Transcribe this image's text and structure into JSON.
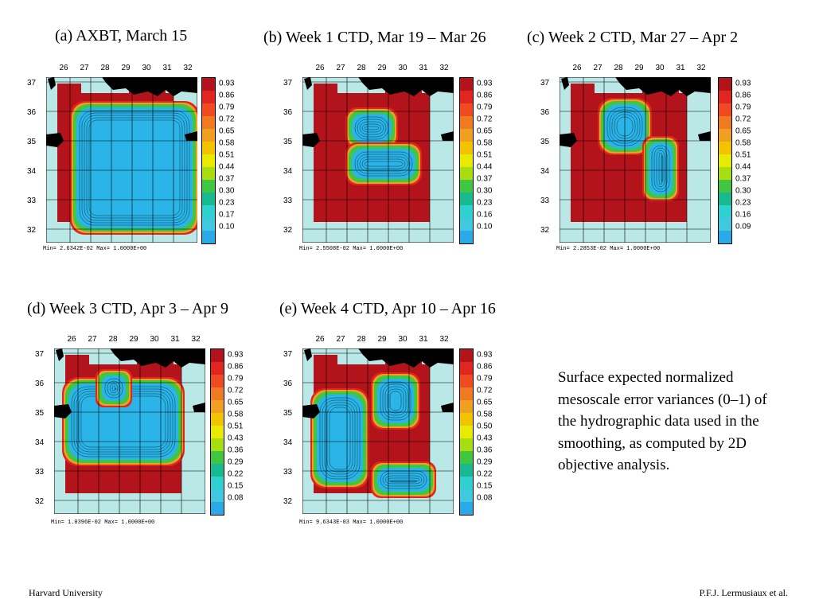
{
  "colors": {
    "high": "#b3131b",
    "low": "#2bb4e8",
    "land": "#000000",
    "water": "#b9e8e6",
    "colorbar": [
      "#b3131b",
      "#e0261f",
      "#f04a22",
      "#f07a22",
      "#f0a020",
      "#f2c400",
      "#e8ea00",
      "#a8de10",
      "#40c640",
      "#18b890",
      "#2fd0d0",
      "#40c8e0",
      "#2aa8e8"
    ]
  },
  "panels": [
    {
      "title": "(a) AXBT, March 15",
      "minmax": "Min= 2.6342E-02  Max= 1.0000E+00",
      "cbar_labels": [
        "0.93",
        "0.86",
        "0.79",
        "0.72",
        "0.65",
        "0.58",
        "0.51",
        "0.44",
        "0.37",
        "0.30",
        "0.23",
        "0.17",
        "0.10"
      ]
    },
    {
      "title": "(b) Week 1 CTD, Mar 19 – Mar 26",
      "minmax": "Min= 2.5508E-02  Max= 1.0000E+00",
      "cbar_labels": [
        "0.93",
        "0.86",
        "0.79",
        "0.72",
        "0.65",
        "0.58",
        "0.51",
        "0.44",
        "0.37",
        "0.30",
        "0.23",
        "0.16",
        "0.10"
      ]
    },
    {
      "title": "(c) Week 2 CTD, Mar 27 – Apr 2",
      "minmax": "Min= 2.2853E-02  Max= 1.0000E+00",
      "cbar_labels": [
        "0.93",
        "0.86",
        "0.79",
        "0.72",
        "0.65",
        "0.58",
        "0.51",
        "0.44",
        "0.37",
        "0.30",
        "0.23",
        "0.16",
        "0.09"
      ]
    },
    {
      "title": "(d) Week 3 CTD, Apr 3 – Apr 9",
      "minmax": "Min= 1.0396E-02  Max= 1.0000E+00",
      "cbar_labels": [
        "0.93",
        "0.86",
        "0.79",
        "0.72",
        "0.65",
        "0.58",
        "0.51",
        "0.43",
        "0.36",
        "0.29",
        "0.22",
        "0.15",
        "0.08"
      ]
    },
    {
      "title": "(e) Week 4 CTD, Apr 10 – Apr 16",
      "minmax": "Min= 9.6343E-03  Max= 1.0000E+00",
      "cbar_labels": [
        "0.93",
        "0.86",
        "0.79",
        "0.72",
        "0.65",
        "0.58",
        "0.50",
        "0.43",
        "0.36",
        "0.29",
        "0.22",
        "0.15",
        "0.08"
      ]
    }
  ],
  "x_ticks": [
    "26",
    "27",
    "28",
    "29",
    "30",
    "31",
    "32"
  ],
  "y_ticks": [
    "37",
    "36",
    "35",
    "34",
    "33",
    "32"
  ],
  "caption": "Surface expected normalized mesoscale error variances (0–1) of the hydrographic data used in the smoothing, as computed by 2D objective analysis.",
  "footer": {
    "left": "Harvard University",
    "right": "P.F.J. Lermusiaux et al."
  }
}
